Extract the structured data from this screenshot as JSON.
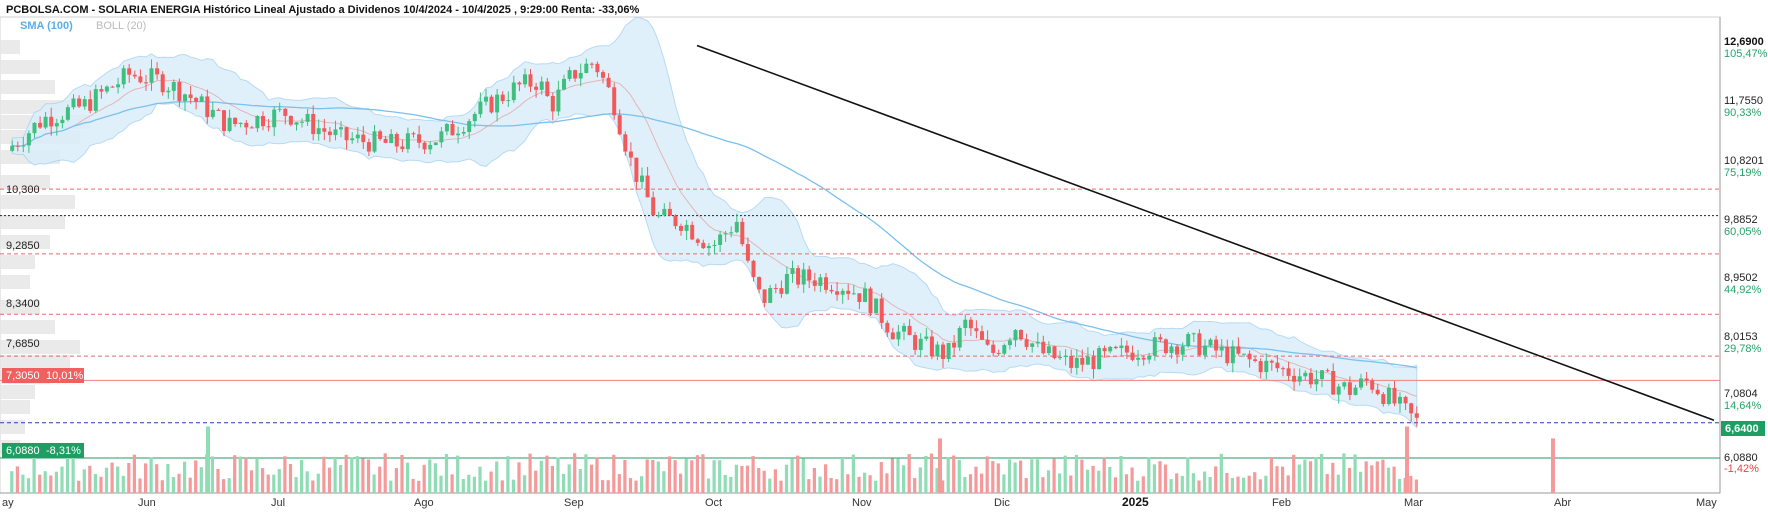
{
  "header": {
    "title": "PCBOLSA.COM - SOLARIA ENERGIA Histórico Lineal Ajustado a Dividenos 10/4/2024 - 10/4/2025 , 9:29:00 Renta: -33,06%",
    "sma_label": "SMA (100)",
    "boll_label": "BOLL (20)"
  },
  "colors": {
    "up": "#3fbf7f",
    "down": "#f05a5a",
    "band_fill": "#dbeefb",
    "band_line": "#a9d4f3",
    "sma": "#7cc0ec",
    "trendline": "#111111",
    "level_dashed": "#e86a6a",
    "current_price_badge": "#1f9e63",
    "high_badge": "#f06060",
    "low_badge": "#1f9e63"
  },
  "y_axis": [
    {
      "price": "12,6900",
      "pct": "105,47%"
    },
    {
      "price": "11,7550",
      "pct": "90,33%"
    },
    {
      "price": "10,8201",
      "pct": "75,19%"
    },
    {
      "price": "9,8852",
      "pct": "60,05%"
    },
    {
      "price": "8,9502",
      "pct": "44,92%"
    },
    {
      "price": "8,0153",
      "pct": "29,78%"
    },
    {
      "price": "7,0804",
      "pct": "14,64%"
    },
    {
      "price": "6,0880",
      "pct": "-1,42%"
    }
  ],
  "current_price": "6,6400",
  "left_levels": [
    "10,300",
    "9,2850",
    "8,3400",
    "7,6850"
  ],
  "high_badge": {
    "price": "7,3050",
    "pct": "10,01%"
  },
  "low_badge": {
    "price": "6,0880",
    "pct": "-8,31%"
  },
  "x_axis": {
    "months": [
      "ay",
      "Jun",
      "Jul",
      "Ago",
      "Sep",
      "Oct",
      "Nov",
      "Dic",
      "2025",
      "Feb",
      "Mar",
      "Abr",
      "May"
    ]
  },
  "chart_data": {
    "type": "candlestick",
    "ylim": [
      5.9,
      12.95
    ],
    "trendline": {
      "from": [
        "2024-10-01",
        12.55
      ],
      "to": [
        "2025-04-28",
        6.68
      ]
    },
    "dashed_levels": [
      10.3,
      9.285,
      8.34,
      7.685,
      6.64
    ],
    "dotted_level": 9.8852,
    "solid_levels": [
      7.305,
      6.088
    ],
    "monthly_close": [
      {
        "month": "2024-04",
        "close": 10.9
      },
      {
        "month": "2024-05",
        "close": 12.1
      },
      {
        "month": "2024-06",
        "close": 11.6
      },
      {
        "month": "2024-07",
        "close": 11.2
      },
      {
        "month": "2024-08",
        "close": 11.0
      },
      {
        "month": "2024-09",
        "close": 11.9
      },
      {
        "month": "2024-10",
        "close": 9.9
      },
      {
        "month": "2024-11",
        "close": 8.9
      },
      {
        "month": "2024-12",
        "close": 8.2
      },
      {
        "month": "2025-01",
        "close": 7.75
      },
      {
        "month": "2025-02",
        "close": 7.8
      },
      {
        "month": "2025-03",
        "close": 7.25
      },
      {
        "month": "2025-04",
        "close": 6.64
      }
    ],
    "volume_spikes": [
      {
        "month": "Jun",
        "relative": 0.95
      },
      {
        "month": "Nov",
        "relative": 0.78
      },
      {
        "month": "Feb",
        "relative": 0.95
      },
      {
        "month": "Mar",
        "relative": 0.78
      }
    ]
  }
}
